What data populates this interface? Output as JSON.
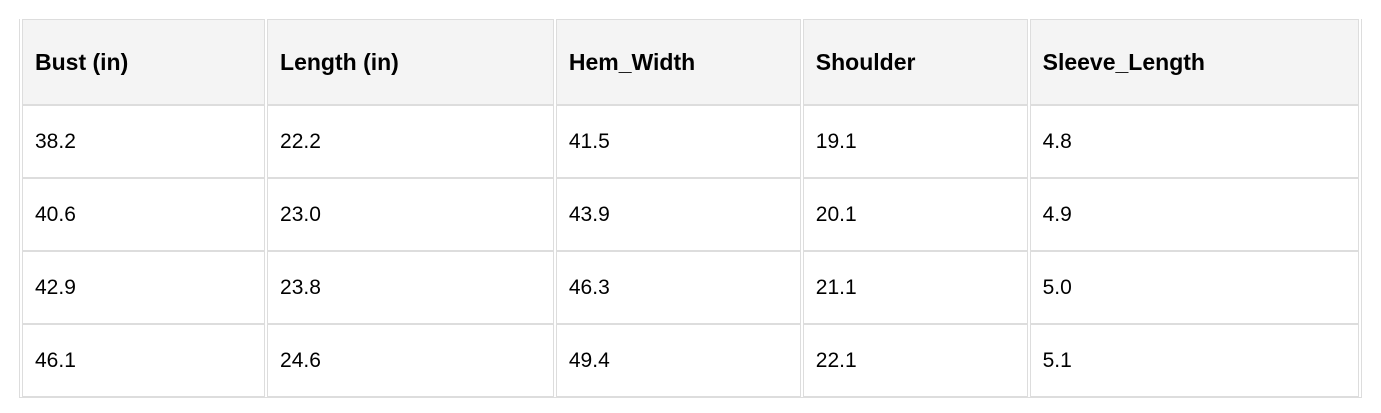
{
  "table": {
    "headers": [
      "Bust (in)",
      "Length (in)",
      "Hem_Width",
      "Shoulder",
      "Sleeve_Length"
    ],
    "rows": [
      [
        "38.2",
        "22.2",
        "41.5",
        "19.1",
        "4.8"
      ],
      [
        "40.6",
        "23.0",
        "43.9",
        "20.1",
        "4.9"
      ],
      [
        "42.9",
        "23.8",
        "46.3",
        "21.1",
        "5.0"
      ],
      [
        "46.1",
        "24.6",
        "49.4",
        "22.1",
        "5.1"
      ]
    ]
  }
}
